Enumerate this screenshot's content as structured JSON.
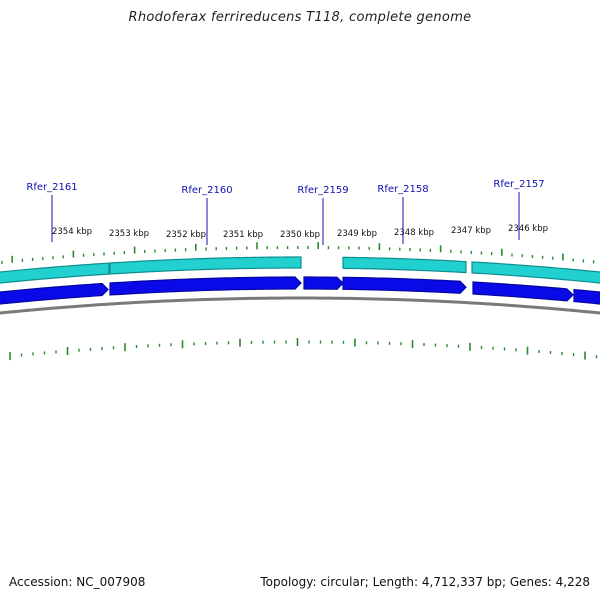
{
  "header": {
    "title": "Rhodoferax ferrireducens T118, complete genome"
  },
  "footer": {
    "accession": "Accession: NC_007908",
    "summary": "Topology: circular; Length: 4,712,337 bp; Genes: 4,228"
  },
  "map": {
    "scale_labels": [
      "2354 kbp",
      "2353 kbp",
      "2352 kbp",
      "2351 kbp",
      "2350 kbp",
      "2349 kbp",
      "2348 kbp",
      "2347 kbp",
      "2346 kbp"
    ],
    "gene_labels": [
      "Rfer_2161",
      "Rfer_2160",
      "Rfer_2159",
      "Rfer_2158",
      "Rfer_2157"
    ],
    "colors": {
      "cds": "#0a0ae8",
      "gene": "#22d0d0",
      "gene_edge": "#0d8f8f",
      "backbone": "#7a7a7a",
      "ticks": "#2a8a2a",
      "label_line": "#1010b0"
    }
  }
}
